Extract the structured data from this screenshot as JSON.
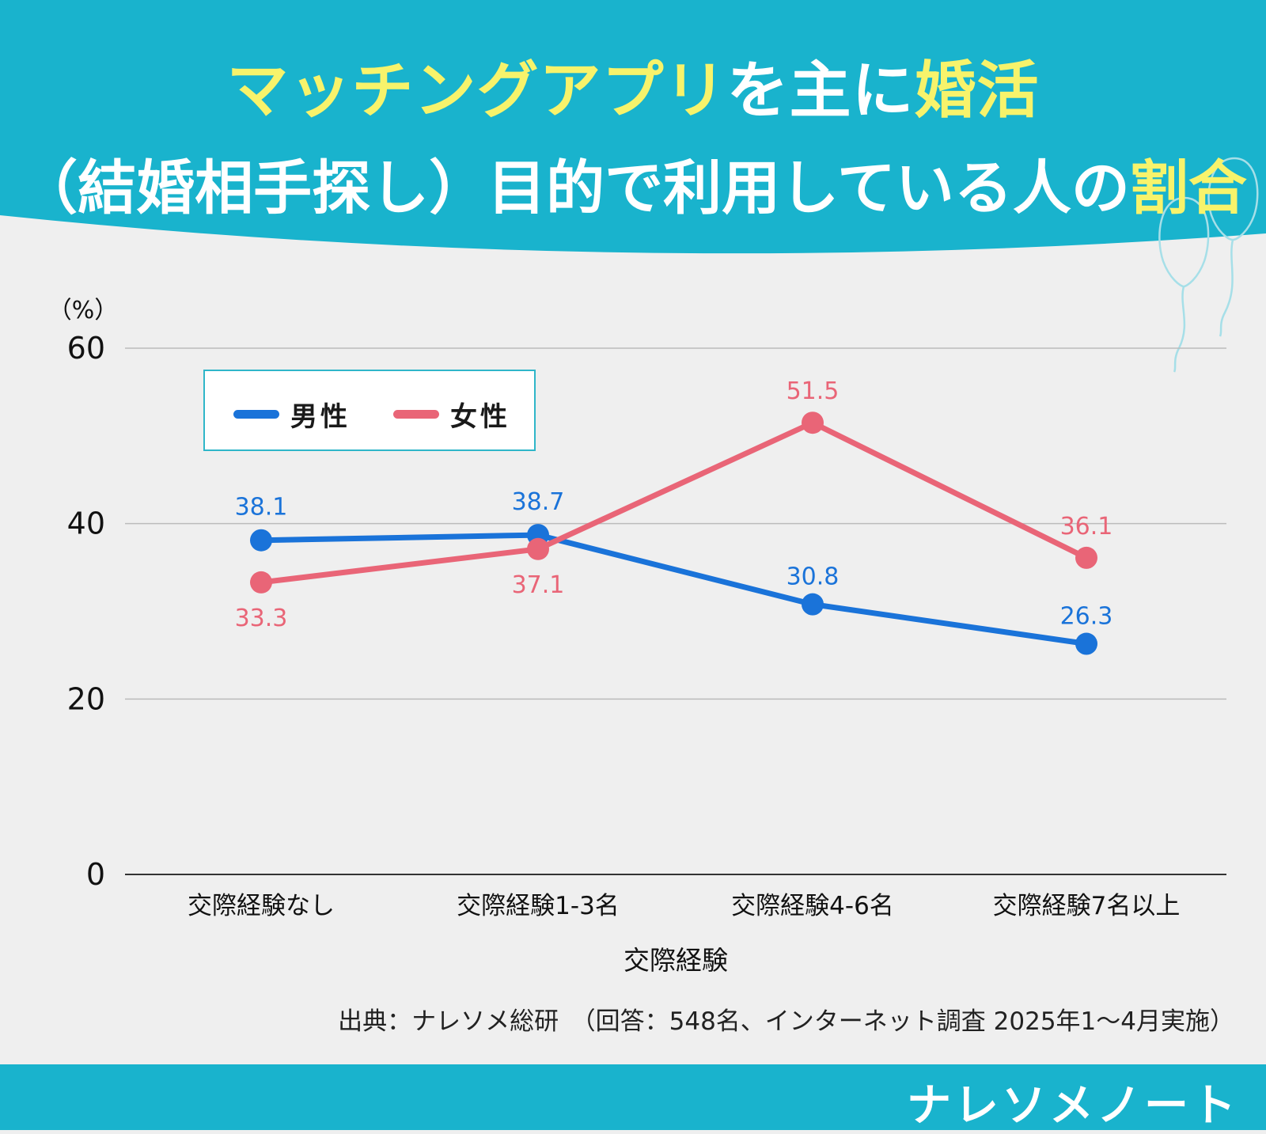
{
  "header": {
    "title_line1_parts": [
      "マッチングアプリ",
      "を主に",
      "婚活"
    ],
    "title_line2_parts": [
      "（結婚相手探し）目的で利用している人の",
      "割合"
    ],
    "bg_color": "#19b3cd",
    "highlight_color": "#f7f36b"
  },
  "chart_data": {
    "type": "line",
    "categories": [
      "交際経験なし",
      "交際経験1-3名",
      "交際経験4-6名",
      "交際経験7名以上"
    ],
    "series": [
      {
        "name": "男性",
        "values": [
          38.1,
          38.7,
          30.8,
          26.3
        ],
        "color": "#1a73d9"
      },
      {
        "name": "女性",
        "values": [
          33.3,
          37.1,
          51.5,
          36.1
        ],
        "color": "#e96577"
      }
    ],
    "data_labels_men": [
      "38.1",
      "38.7",
      "30.8",
      "26.3"
    ],
    "data_labels_women": [
      "33.3",
      "37.1",
      "51.5",
      "36.1"
    ],
    "xlabel": "交際経験",
    "ylabel": "（%）",
    "ylim": [
      0,
      60
    ],
    "yticks": [
      "0",
      "20",
      "40",
      "60"
    ],
    "grid": true,
    "legend_position": "top-left"
  },
  "legend": {
    "men_label": "男性",
    "women_label": "女性"
  },
  "source": "出典：ナレソメ総研　（回答：548名、インターネット調査 2025年1～4月実施）",
  "brand": "ナレソメノート"
}
